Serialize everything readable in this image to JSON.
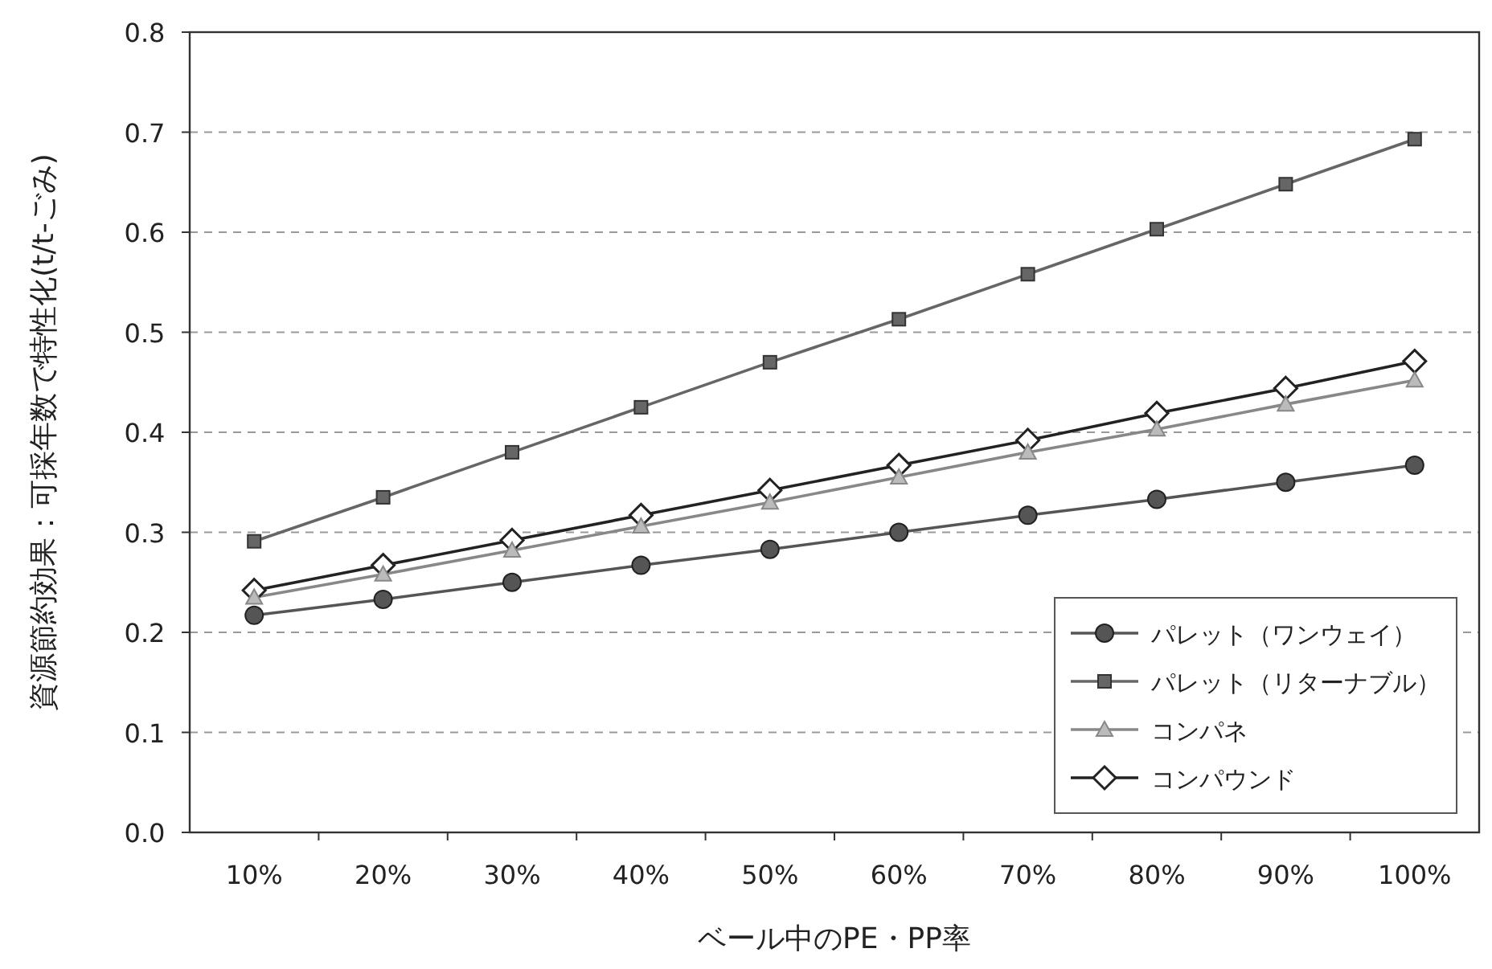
{
  "chart_data": {
    "type": "line",
    "xlabel": "ベール中のPE・PP率",
    "ylabel": "資源節約効果：可採年数で特性化(t/t-ごみ)",
    "categories": [
      "10%",
      "20%",
      "30%",
      "40%",
      "50%",
      "60%",
      "70%",
      "80%",
      "90%",
      "100%"
    ],
    "ylim": [
      0,
      0.8
    ],
    "yticks": [
      {
        "value": 0,
        "label": "0.0"
      },
      0.1,
      0.2,
      0.3,
      0.4,
      0.5,
      0.6,
      0.7,
      0.8
    ],
    "grid": "y",
    "legend": "bottom right",
    "series": [
      {
        "name": "パレット（ワンウェイ）",
        "color": "#555555",
        "marker": "circle",
        "values": [
          0.217,
          0.233,
          0.25,
          0.267,
          0.283,
          0.3,
          0.317,
          0.333,
          0.35,
          0.367
        ]
      },
      {
        "name": "パレット（リターナブル）",
        "color": "#666666",
        "marker": "square",
        "values": [
          0.291,
          0.335,
          0.38,
          0.425,
          0.47,
          0.513,
          0.558,
          0.603,
          0.648,
          0.693
        ]
      },
      {
        "name": "コンパネ",
        "color": "#888888",
        "marker": "triangle",
        "values": [
          0.235,
          0.258,
          0.282,
          0.306,
          0.33,
          0.355,
          0.38,
          0.403,
          0.428,
          0.452
        ]
      },
      {
        "name": "コンパウンド",
        "color": "#222222",
        "marker": "diamond",
        "values": [
          0.242,
          0.267,
          0.292,
          0.317,
          0.342,
          0.367,
          0.392,
          0.419,
          0.444,
          0.471
        ]
      }
    ]
  }
}
